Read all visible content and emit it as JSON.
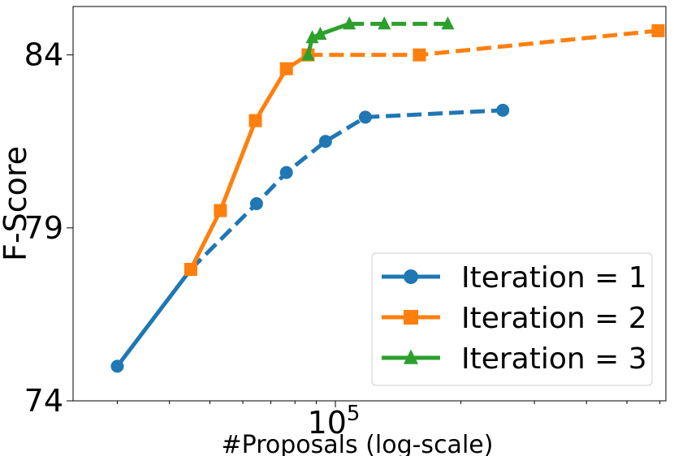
{
  "chart_data": {
    "type": "line",
    "title": "",
    "xlabel": "#Proposals (log-scale)",
    "ylabel": "F-Score",
    "xscale": "log",
    "xlim": [
      23500,
      620000
    ],
    "ylim": [
      74,
      85.4
    ],
    "yticks": [
      74,
      79,
      84
    ],
    "yticklabels": [
      "74",
      "79",
      "84"
    ],
    "xtick_major": {
      "value": 100000,
      "base": "10",
      "exponent": "5"
    },
    "x_minor_ticks": [
      30000,
      40000,
      50000,
      60000,
      70000,
      80000,
      90000,
      200000,
      300000,
      400000,
      500000,
      600000
    ],
    "legend_position": "lower-right",
    "series": [
      {
        "name": "Iteration = 1",
        "color": "#1f77b4",
        "marker": "circle",
        "x": [
          30000,
          45000,
          64700,
          76300,
          94700,
          118000,
          252000
        ],
        "y": [
          75.0,
          77.8,
          79.7,
          80.6,
          81.5,
          82.2,
          82.4
        ],
        "solid_until_index": 1
      },
      {
        "name": "Iteration = 2",
        "color": "#ff7f0e",
        "marker": "square",
        "x": [
          45000,
          53000,
          64300,
          76300,
          86000,
          159000,
          594000
        ],
        "y": [
          77.8,
          79.5,
          82.1,
          83.6,
          84.0,
          84.0,
          84.7
        ],
        "solid_until_index": 4
      },
      {
        "name": "Iteration = 3",
        "color": "#2ca02c",
        "marker": "triangle",
        "x": [
          86000,
          88000,
          92000,
          108000,
          131000,
          186000
        ],
        "y": [
          84.0,
          84.5,
          84.6,
          84.9,
          84.9,
          84.9
        ],
        "solid_until_index": 3
      }
    ]
  }
}
